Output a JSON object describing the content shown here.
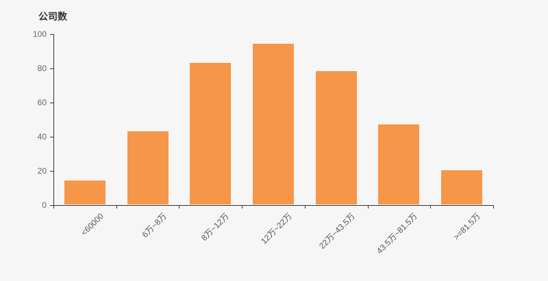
{
  "page": {
    "background_color": "#f6f6f6"
  },
  "chart_data": {
    "type": "bar",
    "title": "",
    "ylabel": "公司数",
    "xlabel": "",
    "categories": [
      "<60000",
      "6万~8万",
      "8万~12万",
      "12万~22万",
      "22万~43.5万",
      "43.5万~81.5万",
      ">=81.5万"
    ],
    "values": [
      14,
      43,
      83,
      94,
      78,
      47,
      20
    ],
    "ylim": [
      0,
      100
    ],
    "yticks": [
      0,
      20,
      40,
      60,
      80,
      100
    ],
    "x_label_rotation": 45,
    "grid": false,
    "legend": "none",
    "bar_color": "#f59649",
    "axis_color": "#333333",
    "ytick_label_color": "#666666",
    "xtick_label_color": "#555555",
    "title_color": "#333333"
  }
}
